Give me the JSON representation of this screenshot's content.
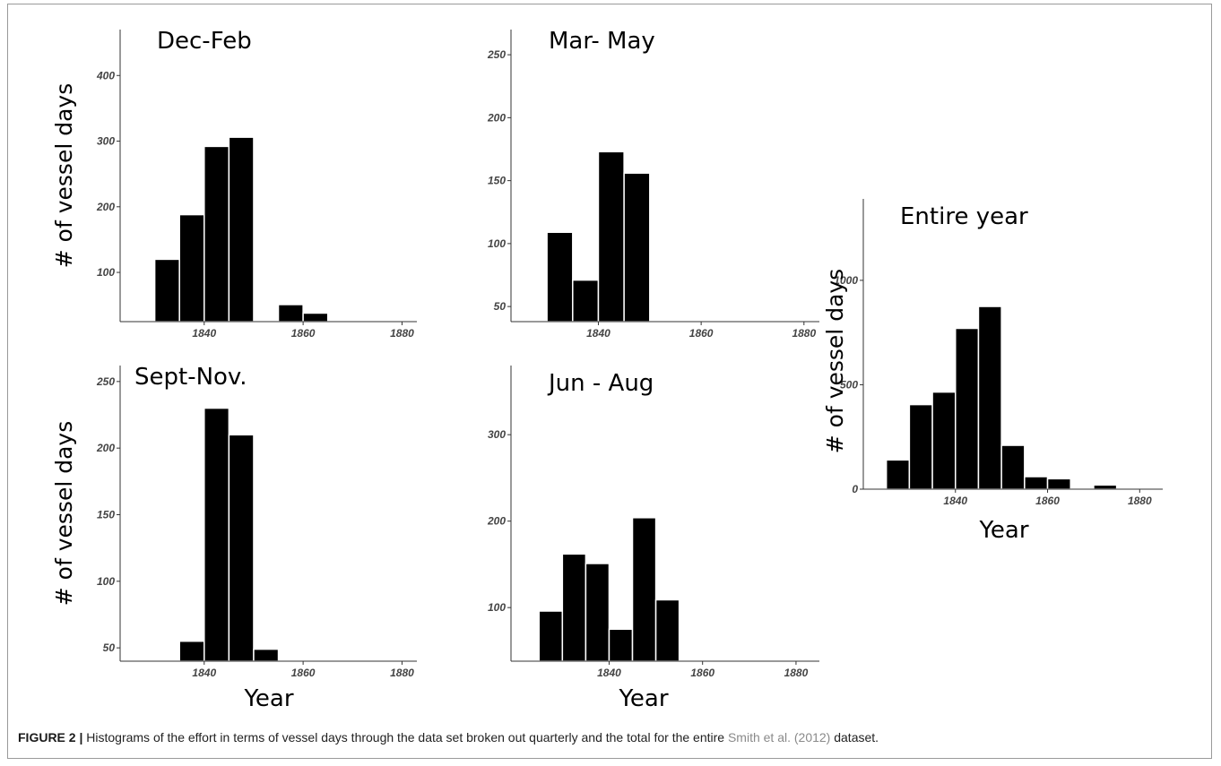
{
  "caption": {
    "label": "FIGURE 2 |",
    "text": " Histograms of the effort in terms of vessel days through the data set broken out quarterly and the total for the entire ",
    "citation": "Smith et al. (2012)",
    "tail": " dataset."
  },
  "colors": {
    "bar": "#000000",
    "bar_edge": "#ffffff",
    "axis": "#333333"
  },
  "chart_data": [
    {
      "type": "bar",
      "title": "Dec-Feb",
      "xlabel": "",
      "ylabel": "# of vessel days",
      "bin_width": 5,
      "bins_start": [
        1830,
        1835,
        1840,
        1845,
        1855,
        1860
      ],
      "values": [
        120,
        188,
        292,
        306,
        51,
        38
      ],
      "xlim": [
        1823,
        1883
      ],
      "ylim": [
        25,
        470
      ],
      "xticks": [
        1840,
        1860,
        1880
      ],
      "yticks": [
        100,
        200,
        300,
        400
      ]
    },
    {
      "type": "bar",
      "title": "Mar- May",
      "xlabel": "",
      "ylabel": "",
      "bin_width": 5,
      "bins_start": [
        1830,
        1835,
        1840,
        1845
      ],
      "values": [
        109,
        71,
        173,
        156
      ],
      "xlim": [
        1823,
        1883
      ],
      "ylim": [
        38,
        270
      ],
      "xticks": [
        1840,
        1860,
        1880
      ],
      "yticks": [
        50,
        100,
        150,
        200,
        250
      ]
    },
    {
      "type": "bar",
      "title": "Sept-Nov.",
      "xlabel": "Year",
      "ylabel": "# of vessel days",
      "bin_width": 5,
      "bins_start": [
        1835,
        1840,
        1845,
        1850
      ],
      "values": [
        55,
        230,
        210,
        49
      ],
      "xlim": [
        1823,
        1883
      ],
      "ylim": [
        40,
        262
      ],
      "xticks": [
        1840,
        1860,
        1880
      ],
      "yticks": [
        50,
        100,
        150,
        200,
        250
      ]
    },
    {
      "type": "bar",
      "title": "Jun - Aug",
      "xlabel": "Year",
      "ylabel": "",
      "bin_width": 5,
      "bins_start": [
        1825,
        1830,
        1835,
        1840,
        1845,
        1850
      ],
      "values": [
        96,
        162,
        151,
        75,
        204,
        109
      ],
      "xlim": [
        1819,
        1885
      ],
      "ylim": [
        38,
        380
      ],
      "xticks": [
        1840,
        1860,
        1880
      ],
      "yticks": [
        100,
        200,
        300
      ]
    },
    {
      "type": "bar",
      "title": "Entire year",
      "xlabel": "Year",
      "ylabel": "# of vessel days",
      "bin_width": 5,
      "bins_start": [
        1825,
        1830,
        1835,
        1840,
        1845,
        1850,
        1855,
        1860,
        1870
      ],
      "values": [
        140,
        405,
        465,
        770,
        875,
        210,
        60,
        50,
        20
      ],
      "xlim": [
        1820,
        1885
      ],
      "ylim": [
        0,
        1390
      ],
      "xticks": [
        1840,
        1860,
        1880
      ],
      "yticks": [
        0,
        500,
        1000
      ]
    }
  ]
}
